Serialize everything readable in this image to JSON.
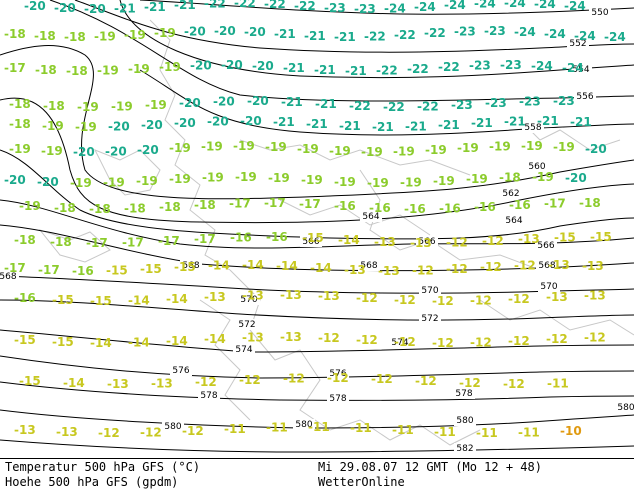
{
  "footer": {
    "left_line1": "Temperatur 500 hPa GFS (°C)",
    "left_line2": "Hoehe 500 hPa GFS (gpdm)",
    "right_line1": "Mi 29.08.07 12 GMT (Mo 12 + 48)",
    "right_line2": "WetterOnline"
  },
  "colors": {
    "height_contour": "#000000",
    "coastline": "#c8c8c8",
    "temp_cold": "#1aaa8c",
    "temp_mid": "#8ccc2c",
    "temp_warm": "#c8c820",
    "temp_hot": "#e09a10"
  },
  "height_labels": [
    "550",
    "552",
    "554",
    "556",
    "558",
    "560",
    "562",
    "564",
    "566",
    "568",
    "570",
    "572",
    "574",
    "576",
    "578",
    "580",
    "582"
  ],
  "temperature_rows": [
    {
      "row": 1,
      "values": [
        "-20",
        "-20",
        "-20",
        "-21",
        "-21",
        "-21",
        "-22",
        "-22",
        "-22",
        "-22",
        "-23",
        "-23",
        "-24",
        "-24",
        "-24",
        "-24",
        "-24",
        "-24",
        "-24"
      ]
    },
    {
      "row": 2,
      "values": [
        "-18",
        "-18",
        "-18",
        "-19",
        "-19",
        "-19",
        "-20",
        "-20",
        "-20",
        "-21",
        "-21",
        "-21",
        "-22",
        "-22",
        "-22",
        "-23",
        "-23",
        "-24",
        "-24",
        "-24",
        "-24"
      ]
    },
    {
      "row": 3,
      "values": [
        "-17",
        "-18",
        "-18",
        "-19",
        "-19",
        "-19",
        "-20",
        "-20",
        "-20",
        "-21",
        "-21",
        "-21",
        "-22",
        "-22",
        "-22",
        "-23",
        "-23",
        "-24",
        "-24"
      ]
    },
    {
      "row": 4,
      "values": [
        "-18",
        "-18",
        "-19",
        "-19",
        "-19",
        "-20",
        "-20",
        "-20",
        "-21",
        "-21",
        "-22",
        "-22",
        "-22",
        "-23",
        "-23",
        "-23",
        "-23"
      ]
    },
    {
      "row": 5,
      "values": [
        "-18",
        "-19",
        "-19",
        "-20",
        "-20",
        "-20",
        "-20",
        "-20",
        "-21",
        "-21",
        "-21",
        "-21",
        "-21",
        "-21",
        "-21",
        "-21",
        "-21",
        "-21"
      ]
    },
    {
      "row": 6,
      "values": [
        "-19",
        "-19",
        "-20",
        "-20",
        "-20",
        "-19",
        "-19",
        "-19",
        "-19",
        "-19",
        "-19",
        "-19",
        "-19",
        "-19",
        "-19",
        "-19",
        "-19",
        "-19",
        "-20"
      ]
    },
    {
      "row": 7,
      "values": [
        "-20",
        "-20",
        "-19",
        "-19",
        "-19",
        "-19",
        "-19",
        "-19",
        "-19",
        "-19",
        "-19",
        "-19",
        "-19",
        "-19",
        "-19",
        "-18",
        "-19",
        "-20"
      ]
    },
    {
      "row": 8,
      "values": [
        "-19",
        "-18",
        "-18",
        "-18",
        "-18",
        "-18",
        "-17",
        "-17",
        "-17",
        "-16",
        "-16",
        "-16",
        "-16",
        "-16",
        "-16",
        "-17",
        "-18"
      ]
    },
    {
      "row": 9,
      "values": [
        "-18",
        "-18",
        "-17",
        "-17",
        "-17",
        "-17",
        "-16",
        "-16",
        "-15",
        "-14",
        "-13",
        "-13",
        "-12",
        "-12",
        "-13",
        "-15",
        "-15"
      ]
    },
    {
      "row": 10,
      "values": [
        "-17",
        "-17",
        "-16",
        "-15",
        "-15",
        "-15",
        "-14",
        "-14",
        "-14",
        "-14",
        "-13",
        "-13",
        "-12",
        "-12",
        "-12",
        "-12",
        "-13",
        "-13"
      ]
    },
    {
      "row": 11,
      "values": [
        "-16",
        "-15",
        "-15",
        "-14",
        "-14",
        "-13",
        "-13",
        "-13",
        "-13",
        "-12",
        "-12",
        "-12",
        "-12",
        "-12",
        "-13",
        "-13"
      ]
    },
    {
      "row": 12,
      "values": [
        "-15",
        "-15",
        "-14",
        "-14",
        "-14",
        "-14",
        "-13",
        "-13",
        "-12",
        "-12",
        "-12",
        "-12",
        "-12",
        "-12",
        "-12",
        "-12"
      ]
    },
    {
      "row": 13,
      "values": [
        "-15",
        "-14",
        "-13",
        "-13",
        "-12",
        "-12",
        "-12",
        "-12",
        "-12",
        "-12",
        "-12",
        "-12",
        "-11"
      ]
    },
    {
      "row": 14,
      "values": [
        "-13",
        "-13",
        "-12",
        "-12",
        "-12",
        "-11",
        "-11",
        "-11",
        "-11",
        "-11",
        "-11",
        "-11",
        "-11",
        "-10"
      ]
    }
  ]
}
